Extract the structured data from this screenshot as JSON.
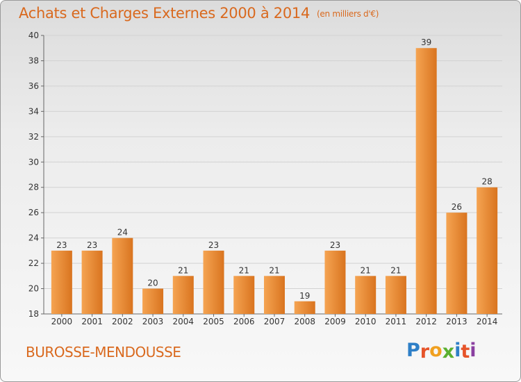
{
  "header": {
    "title": "Achats et Charges Externes 2000 à 2014",
    "unit": "(en milliers d'€)"
  },
  "commune": "BUROSSE-MENDOUSSE",
  "logo": {
    "text": "Proxiti",
    "letter_colors": [
      "#2e7fc7",
      "#e6542a",
      "#f0a020",
      "#5ab030",
      "#2e7fc7",
      "#e6542a",
      "#8a3fa0"
    ]
  },
  "colors": {
    "bar_light": "#f5a452",
    "bar_dark": "#d9741f",
    "accent": "#d9691e"
  },
  "chart_data": {
    "type": "bar",
    "categories": [
      "2000",
      "2001",
      "2002",
      "2003",
      "2004",
      "2005",
      "2006",
      "2007",
      "2008",
      "2009",
      "2010",
      "2011",
      "2012",
      "2013",
      "2014"
    ],
    "values": [
      23,
      23,
      24,
      20,
      21,
      23,
      21,
      21,
      19,
      23,
      21,
      21,
      39,
      26,
      28
    ],
    "ylim": [
      18,
      40
    ],
    "yticks": [
      18,
      20,
      22,
      24,
      26,
      28,
      30,
      32,
      34,
      36,
      38,
      40
    ],
    "grid": true
  }
}
